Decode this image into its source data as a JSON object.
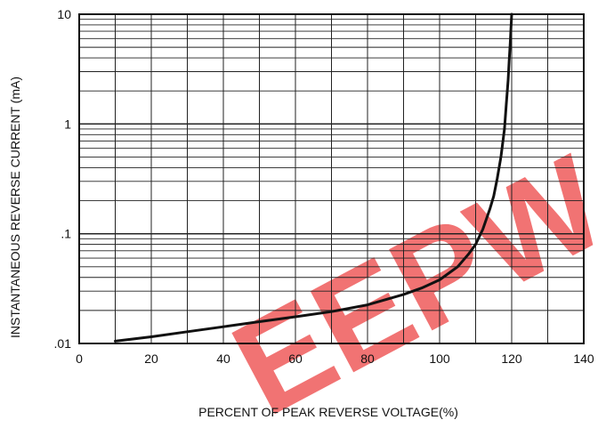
{
  "chart_data": {
    "type": "line",
    "title": "",
    "xlabel": "PERCENT OF PEAK REVERSE VOLTAGE(%)",
    "ylabel": "INSTANTANEOUS REVERSE CURRENT (mA)",
    "xlim": [
      0,
      140
    ],
    "ylim": [
      0.01,
      10
    ],
    "yscale": "log",
    "grid": true,
    "x_ticks": [
      0,
      20,
      40,
      60,
      80,
      100,
      120,
      140
    ],
    "x_tick_labels": [
      "0",
      "20",
      "40",
      "60",
      "80",
      "100",
      "120",
      "140"
    ],
    "y_ticks": [
      0.01,
      0.1,
      1,
      10
    ],
    "y_tick_labels": [
      ".01",
      ".1",
      "1",
      "10"
    ],
    "series": [
      {
        "x": [
          10,
          20,
          30,
          40,
          50,
          60,
          70,
          80,
          90,
          95,
          100,
          105,
          108,
          110,
          112,
          114,
          115,
          116,
          117,
          118,
          118.5,
          119,
          119.3,
          119.6,
          119.8,
          120
        ],
        "y": [
          0.0105,
          0.0115,
          0.0128,
          0.0142,
          0.0158,
          0.0175,
          0.0195,
          0.0225,
          0.028,
          0.032,
          0.038,
          0.05,
          0.065,
          0.08,
          0.11,
          0.17,
          0.22,
          0.32,
          0.5,
          0.9,
          1.5,
          2.5,
          3.8,
          5.5,
          7.5,
          10
        ],
        "color": "#111111"
      }
    ]
  },
  "watermark": {
    "text": "EEPW",
    "color": "#ee5a5a"
  }
}
